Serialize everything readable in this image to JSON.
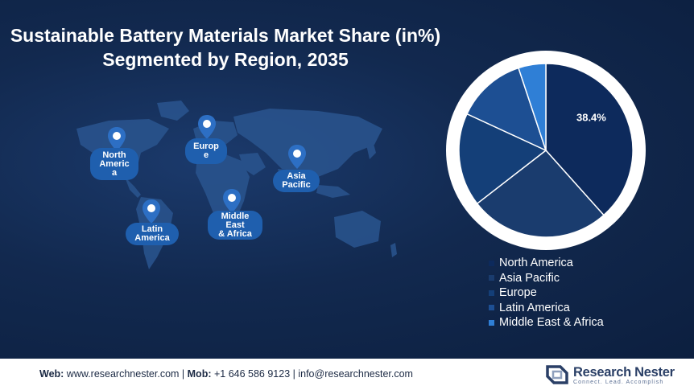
{
  "title": {
    "line1": "Sustainable Battery Materials Market Share (in%)",
    "line2": "Segmented by Region, 2035"
  },
  "map_labels": {
    "north_america": [
      "North",
      "Americ",
      "a"
    ],
    "europe": [
      "Europ",
      "e"
    ],
    "asia_pacific": [
      "Asia",
      "Pacific"
    ],
    "latin_america": [
      "Latin",
      "America"
    ],
    "middle_east_africa": [
      "Middle",
      "East",
      "& Africa"
    ]
  },
  "chart_data": {
    "type": "pie",
    "categories": [
      "North America",
      "Asia Pacific",
      "Europe",
      "Latin America",
      "Middle East & Africa"
    ],
    "values": [
      38.4,
      26.1,
      17.4,
      13.0,
      5.1
    ],
    "colors": [
      "#0d2a5c",
      "#1a3c6e",
      "#143f78",
      "#1d4f93",
      "#2f7fd6"
    ],
    "data_labels": [
      "38.4%",
      "",
      "",
      "",
      ""
    ],
    "legend_position": "bottom"
  },
  "footer": {
    "web_label": "Web:",
    "web_value": " www.researchnester.com | ",
    "mob_label": "Mob:",
    "mob_value": " +1 646 586 9123 | info@researchnester.com",
    "brand_name": "Research Nester",
    "brand_tagline": "Connect. Lead. Accomplish"
  },
  "colors": {
    "background": "#12294f",
    "label_bubble": "#1f5fae",
    "pin": "#2d6fc4"
  },
  "icons": [
    "map-pin-icon",
    "research-nester-logo-icon"
  ]
}
